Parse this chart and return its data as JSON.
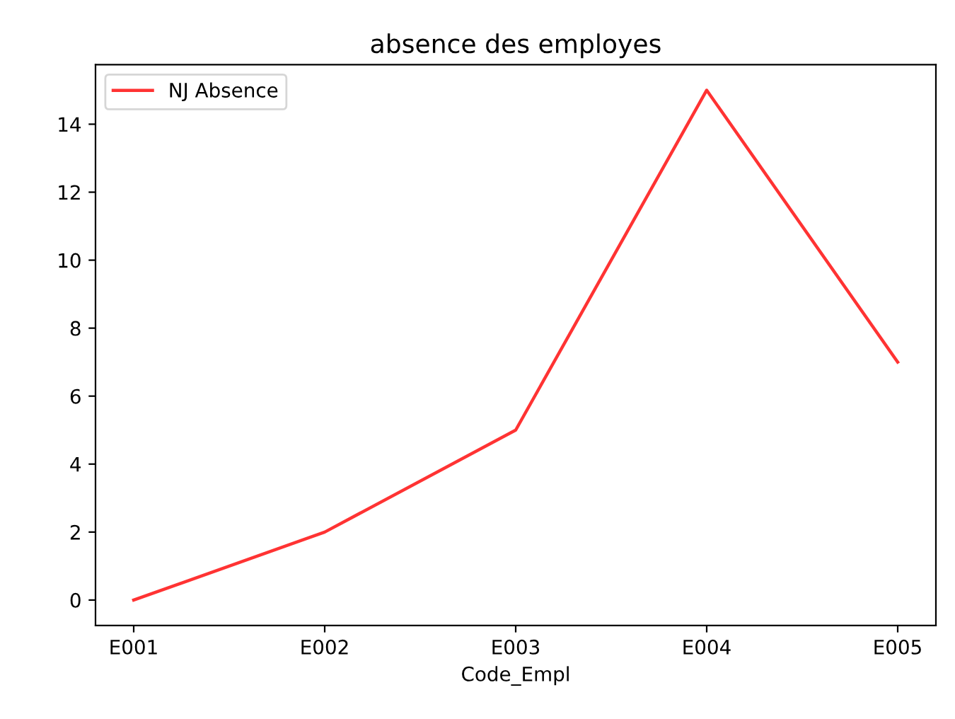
{
  "chart_data": {
    "type": "line",
    "title": "absence des employes",
    "xlabel": "Code_Empl",
    "categories": [
      "E001",
      "E002",
      "E003",
      "E004",
      "E005"
    ],
    "series": [
      {
        "name": "NJ Absence",
        "color": "#ff3333",
        "values": [
          0,
          2,
          5,
          15,
          7
        ]
      }
    ],
    "ylim": [
      -0.75,
      15.75
    ],
    "yticks": [
      0,
      2,
      4,
      6,
      8,
      10,
      12,
      14
    ],
    "legend": "top left",
    "grid": false
  }
}
